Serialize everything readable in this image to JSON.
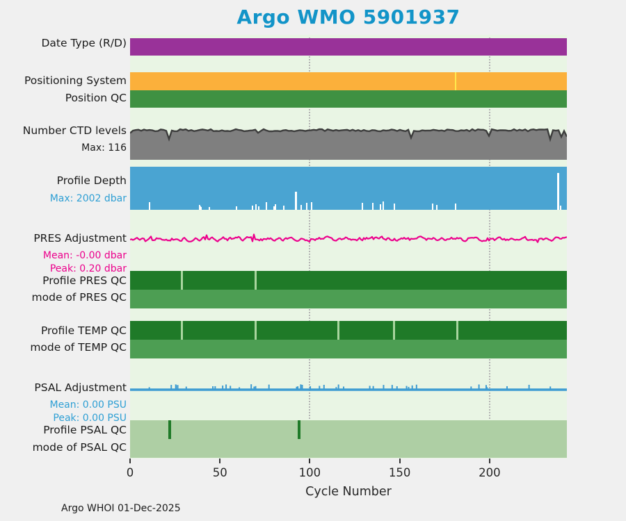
{
  "title": "Argo WMO 5901937",
  "footer": "Argo WHOI 01-Dec-2025",
  "colors": {
    "title": "#1294c8",
    "figure_bg": "#f0f0f0"
  },
  "chart_data": {
    "type": "status-timeline",
    "title": "Argo WMO 5901937",
    "plot_bg": "#e9f5e4",
    "gap_color": "#a8d59e",
    "x": {
      "label": "Cycle Number",
      "min": 0,
      "max": 243,
      "ticks": [
        0,
        50,
        100,
        150,
        200
      ],
      "gridlines": [
        100,
        200
      ]
    },
    "rows": [
      {
        "id": "date_type",
        "label": "Date Type (R/D)",
        "kind": "bar",
        "color": "#993299"
      },
      {
        "id": "positioning_system",
        "label": "Positioning System",
        "kind": "bar",
        "color": "#fbb03b",
        "marks": [
          {
            "cycle": 181,
            "color": "#ffe94d"
          }
        ]
      },
      {
        "id": "position_qc",
        "label": "Position QC",
        "kind": "bar",
        "color": "#3f9142"
      },
      {
        "id": "ctd_levels",
        "label": "Number CTD levels",
        "annotation": "Max: 116",
        "annotation_color": "#1a1a1a",
        "kind": "area",
        "color": "#7f7f7f",
        "edge_color": "#3c3c3c",
        "max_value": 116
      },
      {
        "id": "profile_depth",
        "label": "Profile Depth",
        "annotation": "Max: 2002 dbar",
        "annotation_color": "#2e9fd4",
        "kind": "area",
        "color": "#4aa4d2",
        "max_value_dbar": 2002,
        "shallow_ticks": [
          {
            "cycle": 92,
            "frac": 0.42
          },
          {
            "cycle": 238,
            "frac": 0.85
          }
        ]
      },
      {
        "id": "pres_adj",
        "label": "PRES Adjustment",
        "annotations": [
          "Mean: -0.00 dbar",
          "Peak: 0.20 dbar"
        ],
        "annotation_color": "#ec008c",
        "kind": "line",
        "color": "#ec008c",
        "mean": -0.0,
        "peak": 0.2,
        "unit": "dbar"
      },
      {
        "id": "profile_pres_qc",
        "label": "Profile PRES QC",
        "kind": "bar",
        "color": "#1f7a28",
        "gaps": [
          29,
          70
        ]
      },
      {
        "id": "mode_pres_qc",
        "label": "mode of PRES QC",
        "kind": "bar",
        "color": "#4d9e53"
      },
      {
        "id": "profile_temp_qc",
        "label": "Profile TEMP QC",
        "kind": "bar",
        "color": "#1f7a28",
        "gaps": [
          29,
          70,
          116,
          147,
          182
        ]
      },
      {
        "id": "mode_temp_qc",
        "label": "mode of TEMP QC",
        "kind": "bar",
        "color": "#4d9e53"
      },
      {
        "id": "psal_adj",
        "label": "PSAL Adjustment",
        "annotations": [
          "Mean: 0.00 PSU",
          "Peak: 0.00 PSU"
        ],
        "annotation_color": "#2e9fd4",
        "kind": "line",
        "color": "#3d9bd1",
        "mean": 0.0,
        "peak": 0.0,
        "unit": "PSU"
      },
      {
        "id": "profile_psal_qc",
        "label": "Profile PSAL QC",
        "kind": "bar",
        "color": "#aecfa4",
        "ticks": [
          {
            "cycle": 22,
            "color": "#1f7a28"
          },
          {
            "cycle": 94,
            "color": "#1f7a28"
          }
        ]
      },
      {
        "id": "mode_psal_qc",
        "label": "mode of PSAL QC",
        "kind": "bar",
        "color": "#aecfa4"
      }
    ]
  }
}
